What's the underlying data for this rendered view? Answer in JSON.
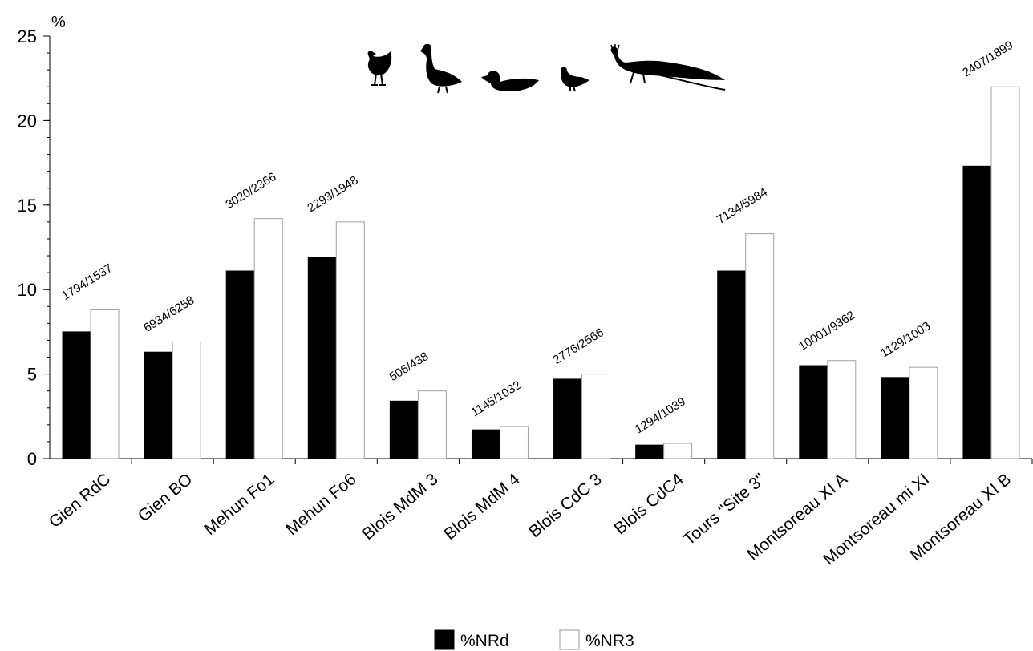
{
  "chart_data": {
    "type": "bar",
    "title": "",
    "xlabel": "",
    "ylabel": "%",
    "ylim": [
      0,
      25
    ],
    "yticks": [
      0,
      5,
      10,
      15,
      20,
      25
    ],
    "grid": false,
    "legend_position": "bottom",
    "categories": [
      "Gien RdC",
      "Gien BO",
      "Mehun Fo1",
      "Mehun Fo6",
      "Blois MdM 3",
      "Blois MdM 4",
      "Blois CdC 3",
      "Blois CdC4",
      "Tours \"Site 3\"",
      "Montsoreau XI A",
      "Montsoreau mi XI",
      "Montsoreau XI B"
    ],
    "series": [
      {
        "name": "%NRd",
        "color": "#000000",
        "values": [
          7.5,
          6.3,
          11.1,
          11.9,
          3.4,
          1.7,
          4.7,
          0.8,
          11.1,
          5.5,
          4.8,
          17.3
        ]
      },
      {
        "name": "%NR3",
        "color": "#ffffff",
        "values": [
          8.8,
          6.9,
          14.2,
          14.0,
          4.0,
          1.9,
          5.0,
          0.9,
          13.3,
          5.8,
          5.4,
          22.0
        ]
      }
    ],
    "annotations": [
      "1794/1537",
      "6934/6258",
      "3020/2366",
      "2293/1948",
      "506/438",
      "1145/1032",
      "2776/2566",
      "1294/1039",
      "7134/5984",
      "10001/9362",
      "1129/1003",
      "2407/1899"
    ],
    "icons": [
      "chicken-icon",
      "goose-icon",
      "duck-icon",
      "pigeon-icon",
      "peacock-icon"
    ]
  }
}
